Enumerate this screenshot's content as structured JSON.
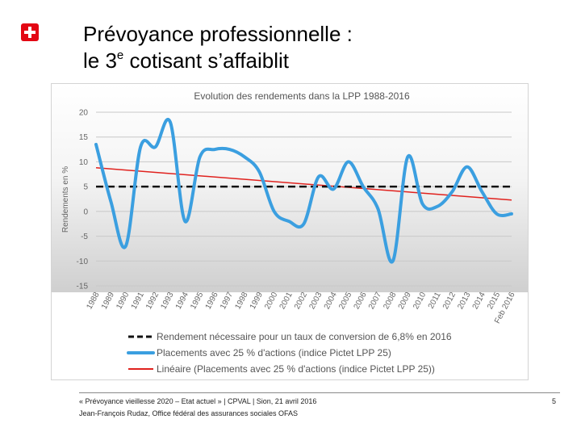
{
  "slide": {
    "title_line1": "Prévoyance professionnelle :",
    "title_line2_pre": "le 3",
    "title_line2_sup": "e",
    "title_line2_post": " cotisant s’affaiblit",
    "footer_line1": "« Prévoyance vieillesse 2020 – Etat actuel » | CPVAL | Sion, 21 avril 2016",
    "footer_line2": "Jean-François Rudaz, Office fédéral des assurances sociales OFAS",
    "page_number": "5"
  },
  "chart_data": {
    "type": "line",
    "title": "Evolution des rendements dans la LPP 1988-2016",
    "ylabel": "Rendements en %",
    "xlabel": "",
    "ylim": [
      -15,
      20
    ],
    "yticks": [
      20,
      15,
      10,
      5,
      0,
      -5,
      -10,
      -15
    ],
    "categories": [
      "1988",
      "1989",
      "1990",
      "1991",
      "1992",
      "1993",
      "1994",
      "1995",
      "1996",
      "1997",
      "1998",
      "1999",
      "2000",
      "2001",
      "2002",
      "2003",
      "2004",
      "2005",
      "2006",
      "2007",
      "2008",
      "2009",
      "2010",
      "2011",
      "2012",
      "2013",
      "2014",
      "2015",
      "Feb 2016"
    ],
    "series": [
      {
        "name": "Rendement nécessaire pour un taux de conversion de 6,8% en 2016",
        "style": "dashed",
        "color": "#111111",
        "values": [
          5,
          5,
          5,
          5,
          5,
          5,
          5,
          5,
          5,
          5,
          5,
          5,
          5,
          5,
          5,
          5,
          5,
          5,
          5,
          5,
          5,
          5,
          5,
          5,
          5,
          5,
          5,
          5,
          5
        ]
      },
      {
        "name": "Placements avec 25 % d'actions (indice Pictet LPP 25)",
        "style": "solid",
        "color": "#3b9fe0",
        "values": [
          13.5,
          2,
          -7,
          13,
          13,
          18,
          -2,
          11,
          12.5,
          12.5,
          11,
          8,
          0,
          -2,
          -2.5,
          7,
          4.5,
          10,
          5,
          0.5,
          -10,
          11,
          1.5,
          1,
          4,
          9,
          4,
          -0.5,
          -0.5
        ]
      },
      {
        "name": "Linéaire (Placements avec 25 % d'actions (indice Pictet LPP 25))",
        "style": "solid",
        "color": "#e0221e",
        "values": [
          8.8,
          8.5,
          8.3,
          8.0,
          7.8,
          7.6,
          7.4,
          7.1,
          6.9,
          6.7,
          6.4,
          6.2,
          6.0,
          5.7,
          5.5,
          5.3,
          5.1,
          4.8,
          4.6,
          4.4,
          4.1,
          3.9,
          3.7,
          3.5,
          3.2,
          3.0,
          2.8,
          2.5,
          2.3
        ]
      }
    ],
    "grid": true,
    "legend_position": "bottom"
  }
}
